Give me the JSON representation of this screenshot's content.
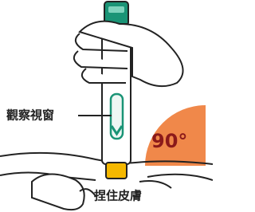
{
  "labels": {
    "window": "觀察視窗",
    "angle": "90°",
    "pinch": "捏住皮膚"
  }
}
